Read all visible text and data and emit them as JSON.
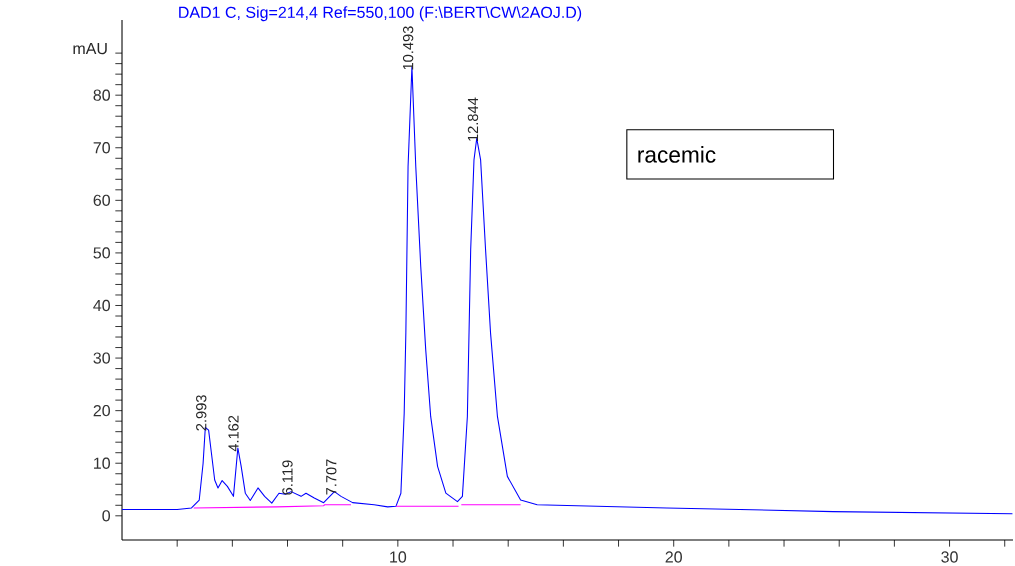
{
  "chart_data": {
    "type": "line",
    "title": "DAD1 C, Sig=214,4 Ref=550,100 (F:\\BERT\\CW\\2AOJ.D)",
    "ylabel": "mAU",
    "xlim": [
      0,
      32.3
    ],
    "ylim": [
      -4.6,
      94.3
    ],
    "xticks": [
      {
        "value": 2,
        "label": null
      },
      {
        "value": 4,
        "label": null
      },
      {
        "value": 6,
        "label": null
      },
      {
        "value": 8,
        "label": null
      },
      10,
      {
        "value": 12,
        "label": null
      },
      {
        "value": 14,
        "label": null
      },
      {
        "value": 16,
        "label": null
      },
      {
        "value": 18,
        "label": null
      },
      20,
      {
        "value": 22,
        "label": null
      },
      {
        "value": 24,
        "label": null
      },
      {
        "value": 26,
        "label": null
      },
      {
        "value": 28,
        "label": null
      },
      30,
      {
        "value": 32,
        "label": null
      }
    ],
    "yticks": [
      0,
      {
        "value": 2,
        "label": null
      },
      {
        "value": 4,
        "label": null
      },
      {
        "value": 6,
        "label": null
      },
      {
        "value": 8,
        "label": null
      },
      10,
      {
        "value": 12,
        "label": null
      },
      {
        "value": 14,
        "label": null
      },
      {
        "value": 16,
        "label": null
      },
      {
        "value": 18,
        "label": null
      },
      20,
      {
        "value": 22,
        "label": null
      },
      {
        "value": 24,
        "label": null
      },
      {
        "value": 26,
        "label": null
      },
      {
        "value": 28,
        "label": null
      },
      30,
      {
        "value": 32,
        "label": null
      },
      {
        "value": 34,
        "label": null
      },
      {
        "value": 36,
        "label": null
      },
      {
        "value": 38,
        "label": null
      },
      40,
      {
        "value": 42,
        "label": null
      },
      {
        "value": 44,
        "label": null
      },
      {
        "value": 46,
        "label": null
      },
      {
        "value": 48,
        "label": null
      },
      50,
      {
        "value": 52,
        "label": null
      },
      {
        "value": 54,
        "label": null
      },
      {
        "value": 56,
        "label": null
      },
      {
        "value": 58,
        "label": null
      },
      60,
      {
        "value": 62,
        "label": null
      },
      {
        "value": 64,
        "label": null
      },
      {
        "value": 66,
        "label": null
      },
      {
        "value": 68,
        "label": null
      },
      70,
      {
        "value": 72,
        "label": null
      },
      {
        "value": 74,
        "label": null
      },
      {
        "value": 76,
        "label": null
      },
      {
        "value": 78,
        "label": null
      },
      80,
      {
        "value": 82,
        "label": null
      },
      {
        "value": 84,
        "label": null
      },
      {
        "value": 86,
        "label": null
      },
      {
        "value": 88,
        "label": null
      }
    ],
    "grid": false,
    "marker": "none",
    "line_style": "solid",
    "series": [
      {
        "color": "#0000ff",
        "x": [
          0,
          1,
          2,
          2.52,
          2.8,
          2.94,
          3.02,
          3.14,
          3.24,
          3.36,
          3.48,
          3.63,
          3.82,
          4.04,
          4.2,
          4.32,
          4.47,
          4.65,
          4.93,
          5.17,
          5.43,
          5.69,
          5.92,
          6.13,
          6.49,
          6.67,
          6.97,
          7.31,
          7.7,
          7.94,
          8.36,
          9.14,
          9.63,
          9.93,
          10.11,
          10.23,
          10.29,
          10.37,
          10.51,
          10.65,
          10.83,
          11.01,
          11.19,
          11.44,
          11.74,
          12.16,
          12.34,
          12.52,
          12.64,
          12.76,
          12.86,
          13.0,
          13.18,
          13.36,
          13.61,
          13.97,
          14.45,
          15.05,
          19.75,
          25.78,
          32.28
        ],
        "values": [
          1.2,
          1.2,
          1.2,
          1.5,
          3.0,
          10,
          16.8,
          16.3,
          12,
          6.8,
          5.3,
          6.7,
          5.6,
          3.7,
          12.9,
          9.4,
          4.3,
          2.9,
          5.3,
          3.7,
          2.4,
          4.3,
          4.1,
          4.6,
          3.7,
          4.3,
          3.4,
          2.5,
          4.6,
          3.7,
          2.5,
          2.1,
          1.7,
          1.8,
          4.3,
          19.5,
          34.8,
          66.4,
          85.4,
          66.4,
          47.4,
          31.6,
          18.9,
          9.4,
          4.3,
          2.7,
          3.7,
          18.9,
          50.6,
          67.7,
          71.8,
          67.7,
          50.6,
          34.8,
          18.9,
          7.5,
          3.0,
          2.1,
          1.5,
          0.8,
          0.4
        ]
      },
      {
        "color": "#ff00ff",
        "x": [
          2.6,
          5.6,
          7.3,
          7.35,
          8.3,
          9.0,
          9.93,
          12.2,
          12.25,
          12.3,
          14.45
        ],
        "values": [
          1.5,
          1.7,
          1.9,
          2.1,
          2.1,
          null,
          1.8,
          1.8,
          null,
          2.1,
          2.1
        ]
      }
    ],
    "annotations": [
      {
        "text": "2.993",
        "x": 2.993,
        "y": 16.8
      },
      {
        "text": "4.162",
        "x": 4.162,
        "y": 12.9
      },
      {
        "text": "6.119",
        "x": 6.119,
        "y": 4.6
      },
      {
        "text": "7.707",
        "x": 7.707,
        "y": 4.6
      },
      {
        "text": "10.493",
        "x": 10.493,
        "y": 85.4
      },
      {
        "text": "12.844",
        "x": 12.844,
        "y": 71.8
      },
      "racemic"
    ]
  }
}
